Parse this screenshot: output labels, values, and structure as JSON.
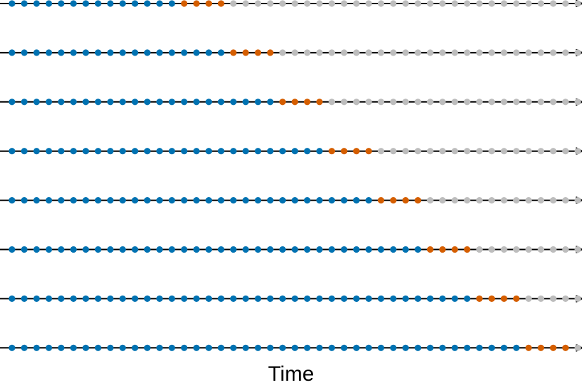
{
  "xlabel": "Time",
  "diagram": {
    "type": "time-series-cross-validation",
    "rows": 8,
    "points_per_row": 47,
    "train_counts": [
      14,
      18,
      22,
      26,
      30,
      34,
      38,
      42
    ],
    "test_counts": [
      4,
      4,
      4,
      4,
      4,
      4,
      4,
      4
    ],
    "colors": {
      "train": "#0072B2",
      "test": "#D55E00",
      "unused": "#BDBDBD",
      "axis": "#000000"
    }
  }
}
